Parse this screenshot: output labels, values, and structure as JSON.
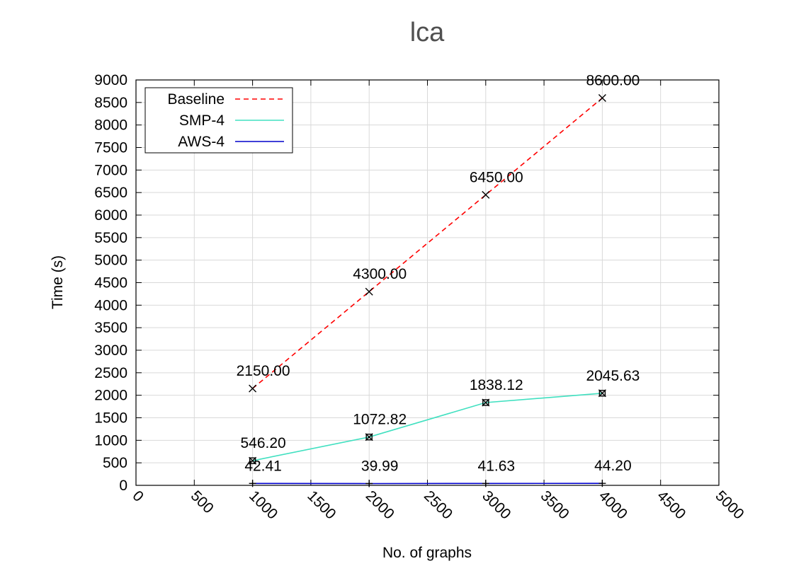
{
  "chart_data": {
    "type": "line",
    "title": "lca",
    "xlabel": "No. of graphs",
    "ylabel": "Time (s)",
    "xlim": [
      0,
      5000
    ],
    "ylim": [
      0,
      9000
    ],
    "xticks": [
      0,
      500,
      1000,
      1500,
      2000,
      2500,
      3000,
      3500,
      4000,
      4500,
      5000
    ],
    "yticks": [
      0,
      500,
      1000,
      1500,
      2000,
      2500,
      3000,
      3500,
      4000,
      4500,
      5000,
      5500,
      6000,
      6500,
      7000,
      7500,
      8000,
      8500,
      9000
    ],
    "grid": true,
    "legend_position": "top-left",
    "x": [
      1000,
      2000,
      3000,
      4000
    ],
    "series": [
      {
        "name": "Baseline",
        "color": "#ff0000",
        "dash": "dashed",
        "values": [
          2150.0,
          4300.0,
          6450.0,
          8600.0
        ],
        "labels": [
          "2150.00",
          "4300.00",
          "6450.00",
          "8600.00"
        ],
        "marker": "cross"
      },
      {
        "name": "SMP-4",
        "color": "#40e0c0",
        "dash": "solid",
        "values": [
          546.2,
          1072.82,
          1838.12,
          2045.63
        ],
        "labels": [
          "546.20",
          "1072.82",
          "1838.12",
          "2045.63"
        ],
        "marker": "boxed-cross"
      },
      {
        "name": "AWS-4",
        "color": "#0000cc",
        "dash": "solid",
        "values": [
          42.41,
          39.99,
          41.63,
          44.2
        ],
        "labels": [
          "42.41",
          "39.99",
          "41.63",
          "44.20"
        ],
        "marker": "plus"
      }
    ]
  }
}
